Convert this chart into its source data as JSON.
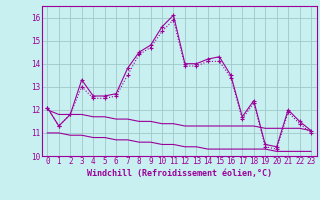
{
  "x": [
    0,
    1,
    2,
    3,
    4,
    5,
    6,
    7,
    8,
    9,
    10,
    11,
    12,
    13,
    14,
    15,
    16,
    17,
    18,
    19,
    20,
    21,
    22,
    23
  ],
  "line1": [
    12.1,
    11.3,
    11.8,
    13.3,
    12.6,
    12.6,
    12.7,
    13.8,
    14.5,
    14.8,
    15.6,
    16.1,
    14.0,
    14.0,
    14.2,
    14.3,
    13.5,
    11.7,
    12.4,
    10.5,
    10.4,
    12.0,
    11.5,
    11.1
  ],
  "line2": [
    12.1,
    11.3,
    11.8,
    13.0,
    12.5,
    12.5,
    12.6,
    13.5,
    14.4,
    14.7,
    15.4,
    15.9,
    13.9,
    13.9,
    14.1,
    14.1,
    13.4,
    11.6,
    12.3,
    10.4,
    10.3,
    11.9,
    11.4,
    11.0
  ],
  "line3": [
    12.0,
    11.8,
    11.8,
    11.8,
    11.7,
    11.7,
    11.6,
    11.6,
    11.5,
    11.5,
    11.4,
    11.4,
    11.3,
    11.3,
    11.3,
    11.3,
    11.3,
    11.3,
    11.3,
    11.2,
    11.2,
    11.2,
    11.2,
    11.1
  ],
  "line4": [
    11.0,
    11.0,
    10.9,
    10.9,
    10.8,
    10.8,
    10.7,
    10.7,
    10.6,
    10.6,
    10.5,
    10.5,
    10.4,
    10.4,
    10.3,
    10.3,
    10.3,
    10.3,
    10.3,
    10.3,
    10.2,
    10.2,
    10.2,
    10.2
  ],
  "line_color": "#9b009b",
  "bg_color": "#c8f0f0",
  "grid_color": "#a0c8c8",
  "xlabel": "Windchill (Refroidissement éolien,°C)",
  "ylim": [
    10,
    16.5
  ],
  "xlim": [
    -0.5,
    23.5
  ],
  "yticks": [
    10,
    11,
    12,
    13,
    14,
    15,
    16
  ],
  "xticks": [
    0,
    1,
    2,
    3,
    4,
    5,
    6,
    7,
    8,
    9,
    10,
    11,
    12,
    13,
    14,
    15,
    16,
    17,
    18,
    19,
    20,
    21,
    22,
    23
  ]
}
